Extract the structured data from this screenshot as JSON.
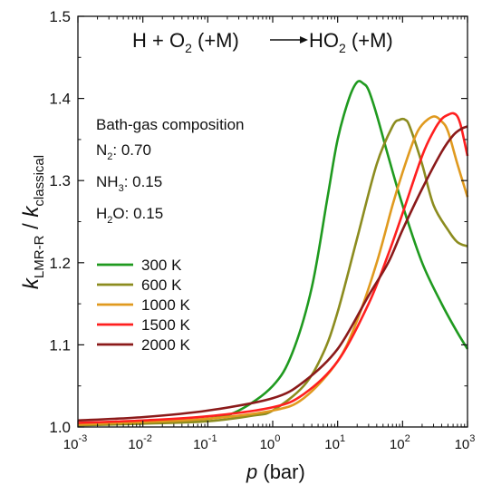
{
  "chart_data": {
    "type": "line",
    "title": "H + O2 (+M) → HO2 (+M)",
    "title_parts": {
      "lhs": "H + O",
      "lhs_sub": "2",
      "lhs_rest": " (+M)",
      "rhs": "HO",
      "rhs_sub": "2",
      "rhs_rest": " (+M)"
    },
    "xlabel": {
      "var": "p",
      "unit": " (bar)"
    },
    "ylabel": {
      "k1": "k",
      "sub1": "LMR-R",
      "slash": " / ",
      "k2": "k",
      "sub2": "classical"
    },
    "x_scale": "log",
    "xlim": [
      0.001,
      1000
    ],
    "ylim": [
      1.0,
      1.5
    ],
    "x_ticks": [
      {
        "value": 0.001,
        "base": "10",
        "exp": "-3"
      },
      {
        "value": 0.01,
        "base": "10",
        "exp": "-2"
      },
      {
        "value": 0.1,
        "base": "10",
        "exp": "-1"
      },
      {
        "value": 1,
        "base": "10",
        "exp": "0"
      },
      {
        "value": 10,
        "base": "10",
        "exp": "1"
      },
      {
        "value": 100,
        "base": "10",
        "exp": "2"
      },
      {
        "value": 1000,
        "base": "10",
        "exp": "3"
      }
    ],
    "y_ticks": [
      {
        "value": 1.0,
        "label": "1.0"
      },
      {
        "value": 1.1,
        "label": "1.1"
      },
      {
        "value": 1.2,
        "label": "1.2"
      },
      {
        "value": 1.3,
        "label": "1.3"
      },
      {
        "value": 1.4,
        "label": "1.4"
      },
      {
        "value": 1.5,
        "label": "1.5"
      }
    ],
    "grid": false,
    "legend_placement": "left",
    "annotation": {
      "heading": "Bath-gas composition",
      "rows": [
        {
          "species": "N",
          "sub": "2",
          "value": ": 0.70"
        },
        {
          "species": "NH",
          "sub": "3",
          "value": ": 0.15"
        },
        {
          "species": "H",
          "sub": "2",
          "tail": "O",
          "value": ": 0.15"
        }
      ]
    },
    "series": [
      {
        "name": "300 K",
        "color": "#1f9a1f",
        "x": [
          0.001,
          0.01,
          0.1,
          0.3,
          1,
          2,
          4,
          7,
          10,
          15,
          20,
          25,
          30,
          40,
          60,
          100,
          200,
          400,
          700,
          1000
        ],
        "y": [
          1.003,
          1.005,
          1.01,
          1.02,
          1.05,
          1.09,
          1.17,
          1.28,
          1.35,
          1.4,
          1.42,
          1.418,
          1.41,
          1.38,
          1.33,
          1.27,
          1.2,
          1.15,
          1.115,
          1.095
        ]
      },
      {
        "name": "600 K",
        "color": "#8c8c1f",
        "x": [
          0.001,
          0.01,
          0.1,
          0.5,
          1,
          3,
          6,
          10,
          20,
          40,
          70,
          90,
          110,
          130,
          200,
          300,
          500,
          700,
          1000
        ],
        "y": [
          1.002,
          1.004,
          1.007,
          1.014,
          1.02,
          1.05,
          1.09,
          1.14,
          1.23,
          1.32,
          1.366,
          1.374,
          1.374,
          1.365,
          1.32,
          1.27,
          1.24,
          1.225,
          1.22
        ]
      },
      {
        "name": "1000 K",
        "color": "#e09a1f",
        "x": [
          0.001,
          0.01,
          0.1,
          1,
          3,
          10,
          20,
          40,
          70,
          100,
          150,
          200,
          300,
          400,
          500,
          700,
          1000
        ],
        "y": [
          1.003,
          1.006,
          1.01,
          1.02,
          1.035,
          1.08,
          1.13,
          1.2,
          1.27,
          1.31,
          1.35,
          1.368,
          1.378,
          1.372,
          1.36,
          1.32,
          1.28
        ]
      },
      {
        "name": "1500 K",
        "color": "#ff1f1f",
        "x": [
          0.001,
          0.01,
          0.1,
          1,
          3,
          10,
          30,
          60,
          100,
          200,
          300,
          400,
          500,
          600,
          700,
          800,
          1000
        ],
        "y": [
          1.005,
          1.008,
          1.013,
          1.024,
          1.04,
          1.08,
          1.15,
          1.21,
          1.26,
          1.33,
          1.36,
          1.375,
          1.38,
          1.382,
          1.378,
          1.365,
          1.33
        ]
      },
      {
        "name": "2000 K",
        "color": "#8b1a1a",
        "x": [
          0.001,
          0.01,
          0.1,
          1,
          3,
          10,
          30,
          60,
          100,
          200,
          400,
          600,
          800,
          1000
        ],
        "y": [
          1.008,
          1.012,
          1.02,
          1.035,
          1.055,
          1.095,
          1.16,
          1.2,
          1.24,
          1.29,
          1.335,
          1.355,
          1.363,
          1.366
        ]
      }
    ]
  }
}
